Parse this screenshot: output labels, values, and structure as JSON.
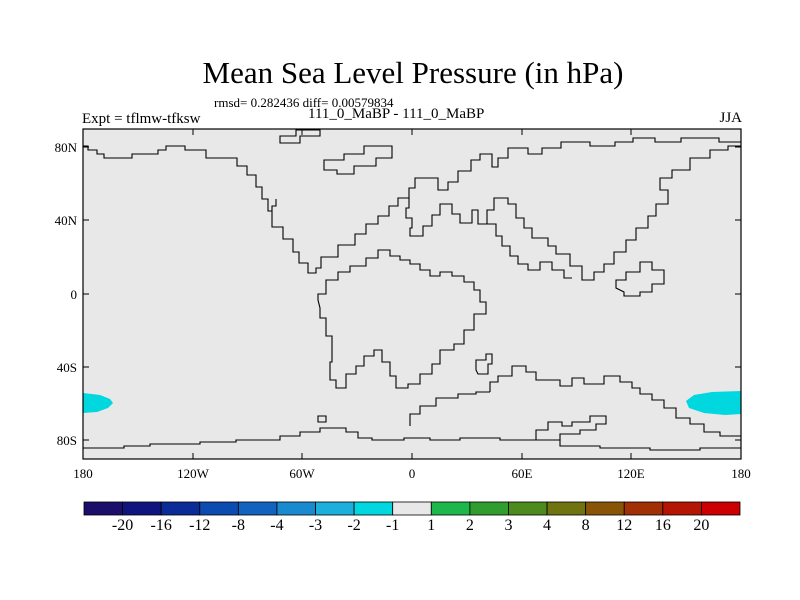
{
  "title": "Mean Sea Level Pressure (in hPa)",
  "subtitle": "rmsd= 0.282436 diff= 0.00579834",
  "experiment": "Expt = tflmw-tfksw",
  "panel_label": "111_0_MaBP - 111_0_MaBP",
  "season": "JJA",
  "map": {
    "projection": "cylindrical-equidistant",
    "lon_range": [
      -180,
      180
    ],
    "lat_range": [
      -90,
      90
    ],
    "background_color": "#e8e8e8",
    "coastline_color": "#000000",
    "x_ticks": [
      "180",
      "120W",
      "60W",
      "0",
      "60E",
      "120E",
      "180"
    ],
    "y_ticks": [
      "80N",
      "40N",
      "0",
      "40S",
      "80S"
    ],
    "anomalies": [
      {
        "region": "southern-ocean-west-edge",
        "lon_center": -176,
        "lat_center": -60,
        "value": "-1 to -2",
        "color": "#00d7de"
      },
      {
        "region": "southern-ocean-east-edge",
        "lon_center": 170,
        "lat_center": -60,
        "value": "-1 to -2",
        "color": "#00d7de"
      }
    ]
  },
  "colorbar": {
    "labels": [
      "-20",
      "-16",
      "-12",
      "-8",
      "-4",
      "-3",
      "-2",
      "-1",
      "1",
      "2",
      "3",
      "4",
      "8",
      "12",
      "16",
      "20"
    ],
    "colors": [
      "#1b0f6b",
      "#10147e",
      "#0b2c98",
      "#0c4bb0",
      "#1262c0",
      "#1a8ad0",
      "#1ab0db",
      "#00d7de",
      "#e8e8e8",
      "#1eb84a",
      "#2f9e2f",
      "#4d8b1e",
      "#6f7410",
      "#8a5406",
      "#a13004",
      "#b51503",
      "#cc0000"
    ]
  }
}
